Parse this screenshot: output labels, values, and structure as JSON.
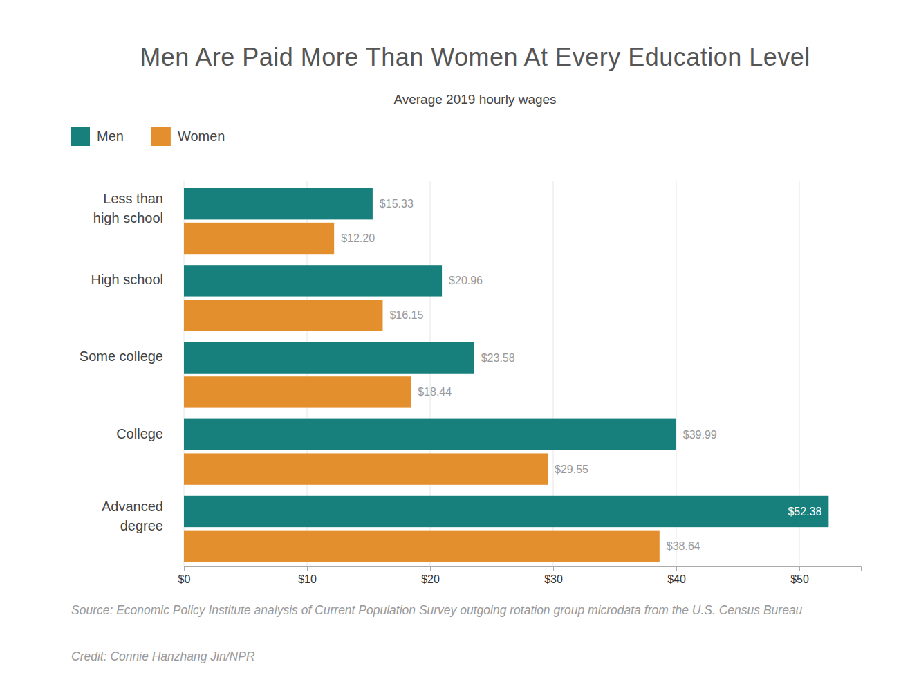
{
  "chart_data": {
    "type": "bar",
    "orientation": "horizontal",
    "title": "Men Are Paid More Than Women At Every Education Level",
    "subtitle": "Average 2019 hourly wages",
    "categories": [
      "Less than high school",
      "High school",
      "Some college",
      "College",
      "Advanced degree"
    ],
    "series": [
      {
        "name": "Men",
        "color": "#17807c",
        "values": [
          15.33,
          20.96,
          23.58,
          39.99,
          52.38
        ],
        "value_labels": [
          "$15.33",
          "$20.96",
          "$23.58",
          "$39.99",
          "$52.38"
        ]
      },
      {
        "name": "Women",
        "color": "#e48f2d",
        "values": [
          12.2,
          16.15,
          18.44,
          29.55,
          38.64
        ],
        "value_labels": [
          "$12.20",
          "$16.15",
          "$18.44",
          "$29.55",
          "$38.64"
        ]
      }
    ],
    "xlim": [
      0,
      55
    ],
    "xticks": [
      {
        "value": 0,
        "label": "$0"
      },
      {
        "value": 10,
        "label": "$10"
      },
      {
        "value": 20,
        "label": "$20"
      },
      {
        "value": 30,
        "label": "$30"
      },
      {
        "value": 40,
        "label": "$40"
      },
      {
        "value": 50,
        "label": "$50"
      }
    ],
    "grid": true,
    "legend": "top-left",
    "data_labels": true,
    "source": "Source: Economic Policy Institute analysis of Current Population Survey outgoing rotation group microdata from the U.S. Census Bureau",
    "credit": "Credit: Connie Hanzhang Jin/NPR"
  }
}
